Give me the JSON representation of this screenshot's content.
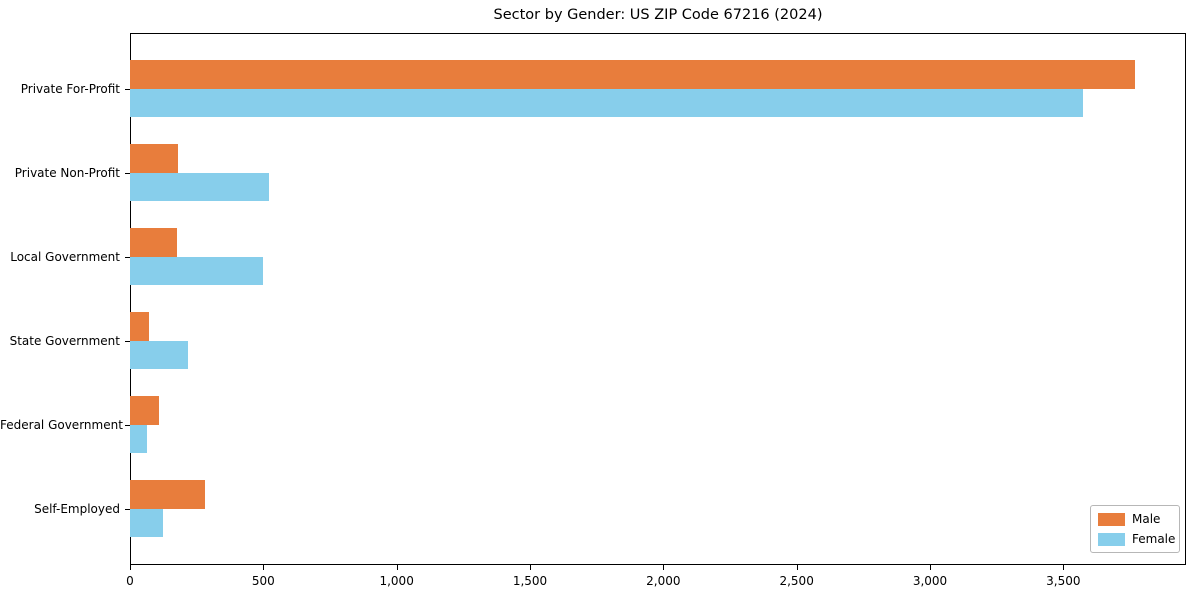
{
  "title": "Sector by Gender: US ZIP Code 67216 (2024)",
  "chart_data": {
    "type": "bar",
    "orientation": "horizontal",
    "title": "Sector by Gender: US ZIP Code 67216 (2024)",
    "xlabel": "",
    "ylabel": "",
    "categories": [
      "Private For-Profit",
      "Private Non-Profit",
      "Local Government",
      "State Government",
      "Federal Government",
      "Self-Employed"
    ],
    "series": [
      {
        "name": "Male",
        "color": "#E87D3C",
        "values": [
          3770,
          180,
          175,
          72,
          107,
          280
        ]
      },
      {
        "name": "Female",
        "color": "#87CEEB",
        "values": [
          3575,
          520,
          500,
          218,
          65,
          122
        ]
      }
    ],
    "xlim": [
      0,
      3960
    ],
    "xticks": [
      0,
      500,
      1000,
      1500,
      2000,
      2500,
      3000,
      3500
    ],
    "xtick_labels": [
      "0",
      "500",
      "1,000",
      "1,500",
      "2,000",
      "2,500",
      "3,000",
      "3,500"
    ],
    "grid": false,
    "legend_position": "lower right"
  }
}
